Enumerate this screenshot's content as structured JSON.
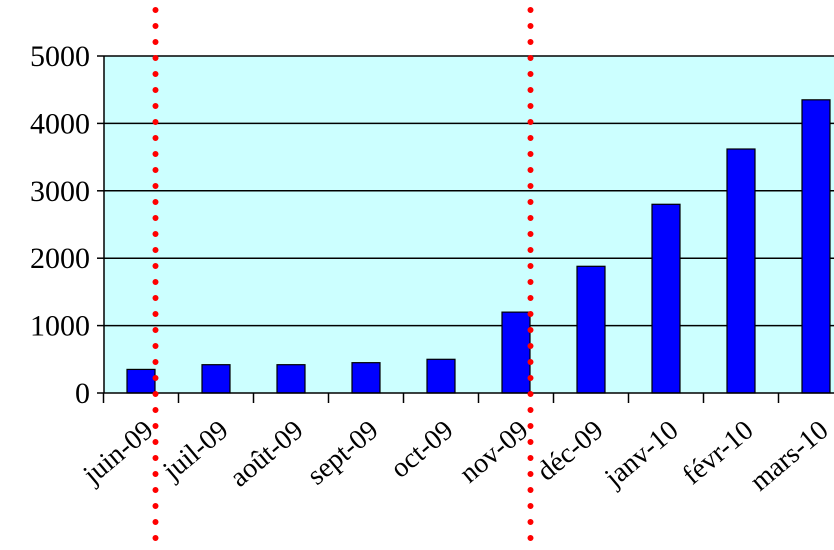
{
  "chart_data": {
    "type": "bar",
    "title": "",
    "xlabel": "",
    "ylabel": "",
    "categories": [
      "juin-09",
      "juil-09",
      "août-09",
      "sept-09",
      "oct-09",
      "nov-09",
      "déc-09",
      "janv-10",
      "févr-10",
      "mars-10"
    ],
    "values": [
      350,
      420,
      420,
      450,
      500,
      1200,
      1880,
      2800,
      3620,
      4350
    ],
    "ylim": [
      0,
      5000
    ],
    "yticks": [
      0,
      1000,
      2000,
      3000,
      4000,
      5000
    ],
    "grid": "horizontal",
    "legend": "none",
    "colors": {
      "bar": "#0000ff",
      "bar_edge": "#000000",
      "plot_background": "#ccffff",
      "marker_line": "#ff0000"
    },
    "annotations": [
      {
        "type": "vertical-dotted-line",
        "between": [
          "juin-09",
          "juil-09"
        ]
      },
      {
        "type": "vertical-dotted-line",
        "between": [
          "nov-09",
          "déc-09"
        ]
      }
    ]
  }
}
